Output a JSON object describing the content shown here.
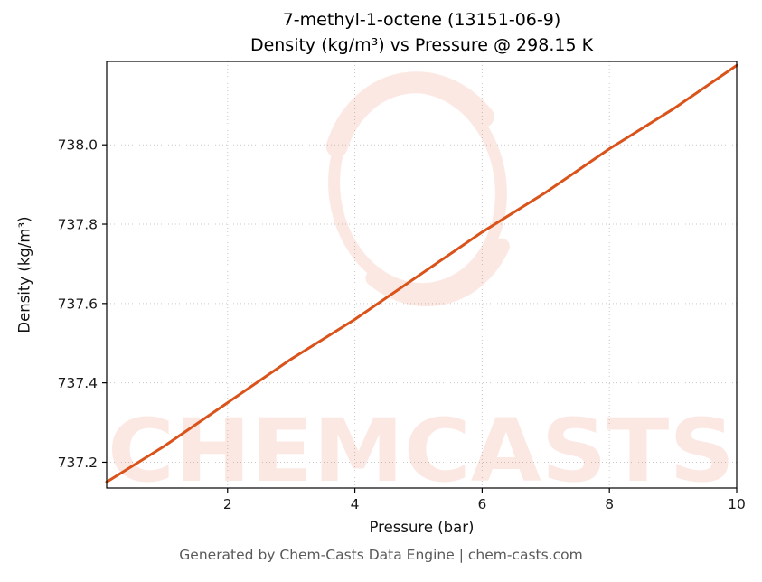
{
  "figure": {
    "title_line1": "7-methyl-1-octene (13151-06-9)",
    "title_line2": "Density (kg/m³) vs Pressure @ 298.15 K",
    "footer": "Generated by Chem-Casts Data Engine | chem-casts.com"
  },
  "watermark": {
    "text": "CHEMCASTS",
    "logo": "brush-circle",
    "color": "#e74c2c",
    "opacity": 0.13
  },
  "colors": {
    "line": "#d9531b",
    "grid": "#c9c9c9",
    "spine": "#000000",
    "tick_text": "#1a1a1a",
    "footer_text": "#5a5a5a"
  },
  "chart_data": {
    "type": "line",
    "title": "7-methyl-1-octene (13151-06-9) — Density (kg/m³) vs Pressure @ 298.15 K",
    "xlabel": "Pressure (bar)",
    "ylabel": "Density (kg/m³)",
    "xlim": [
      0.1,
      10
    ],
    "ylim": [
      737.135,
      738.21
    ],
    "xticks": [
      2,
      4,
      6,
      8,
      10
    ],
    "xticklabels": [
      "2",
      "4",
      "6",
      "8",
      "10"
    ],
    "yticks": [
      737.2,
      737.4,
      737.6,
      737.8,
      738.0
    ],
    "yticklabels": [
      "737.2",
      "737.4",
      "737.6",
      "737.8",
      "738.0"
    ],
    "grid": true,
    "grid_style": "dotted",
    "legend": "none",
    "series": [
      {
        "name": "Density @ 298.15 K",
        "x": [
          0.1,
          1,
          2,
          3,
          4,
          5,
          6,
          7,
          8,
          9,
          10
        ],
        "y": [
          737.15,
          737.24,
          737.35,
          737.46,
          737.56,
          737.67,
          737.78,
          737.88,
          737.99,
          738.09,
          738.2
        ],
        "color": "#d9531b",
        "linewidth": 3
      }
    ]
  }
}
